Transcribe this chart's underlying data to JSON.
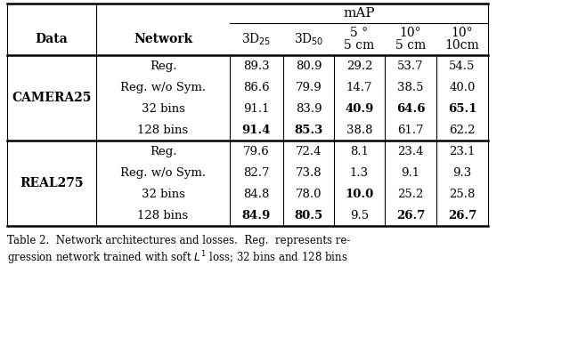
{
  "section1_label": "CAMERA25",
  "section2_label": "REAL275",
  "rows_camera25": [
    [
      "Reg.",
      "89.3",
      "80.9",
      "29.2",
      "53.7",
      "54.5"
    ],
    [
      "Reg. w/o Sym.",
      "86.6",
      "79.9",
      "14.7",
      "38.5",
      "40.0"
    ],
    [
      "32 bins",
      "91.1",
      "83.9",
      "40.9",
      "64.6",
      "65.1"
    ],
    [
      "128 bins",
      "91.4",
      "85.3",
      "38.8",
      "61.7",
      "62.2"
    ]
  ],
  "bold_camera25": [
    [
      false,
      false,
      false,
      false,
      false,
      false
    ],
    [
      false,
      false,
      false,
      false,
      false,
      false
    ],
    [
      false,
      false,
      false,
      true,
      true,
      true
    ],
    [
      false,
      true,
      true,
      false,
      false,
      false
    ]
  ],
  "rows_real275": [
    [
      "Reg.",
      "79.6",
      "72.4",
      "8.1",
      "23.4",
      "23.1"
    ],
    [
      "Reg. w/o Sym.",
      "82.7",
      "73.8",
      "1.3",
      "9.1",
      "9.3"
    ],
    [
      "32 bins",
      "84.8",
      "78.0",
      "10.0",
      "25.2",
      "25.8"
    ],
    [
      "128 bins",
      "84.9",
      "80.5",
      "9.5",
      "26.7",
      "26.7"
    ]
  ],
  "bold_real275": [
    [
      false,
      false,
      false,
      false,
      false,
      false
    ],
    [
      false,
      false,
      false,
      false,
      false,
      false
    ],
    [
      false,
      false,
      false,
      true,
      false,
      false
    ],
    [
      false,
      true,
      true,
      false,
      true,
      true
    ]
  ],
  "bg_color": "#ffffff"
}
